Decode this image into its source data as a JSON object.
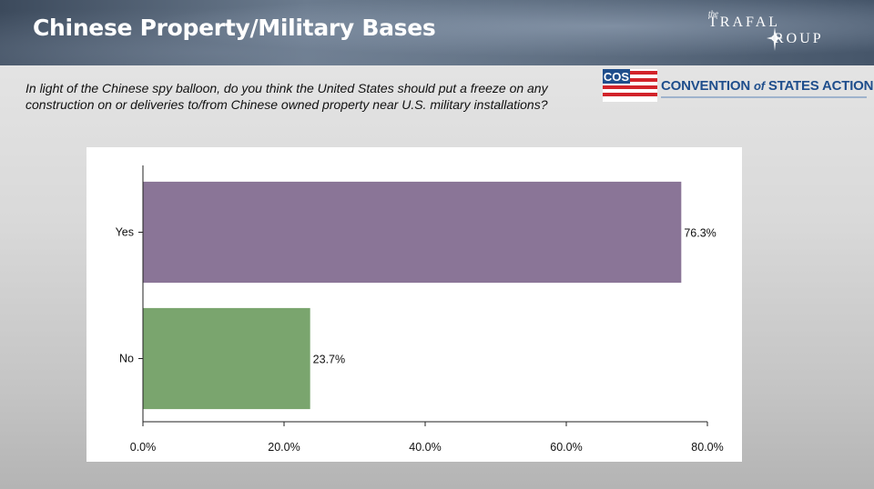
{
  "header": {
    "title": "Chinese Property/Military Bases",
    "brand_the": "the",
    "brand_line1": "TRAFAL",
    "brand_line2": "ROUP"
  },
  "question": "In light of the Chinese spy balloon, do you think the United States should put a freeze on any construction on or deliveries to/from Chinese owned property near U.S. military installations?",
  "cos": {
    "abbr": "COS",
    "name_part1": "CONVENTION ",
    "name_of": "of",
    "name_part2": " STATES ACTION",
    "colors": {
      "blue": "#1f4e8c",
      "red": "#d2232a"
    }
  },
  "chart_data": {
    "type": "bar",
    "orientation": "horizontal",
    "categories": [
      "Yes",
      "No"
    ],
    "values": [
      76.3,
      23.7
    ],
    "value_labels": [
      "76.3%",
      "23.7%"
    ],
    "colors": [
      "#8a7597",
      "#7aa56e"
    ],
    "xlim": [
      0,
      80
    ],
    "xticks": [
      0,
      20,
      40,
      60,
      80
    ],
    "xtick_labels": [
      "0.0%",
      "20.0%",
      "40.0%",
      "60.0%",
      "80.0%"
    ],
    "grid": false
  }
}
